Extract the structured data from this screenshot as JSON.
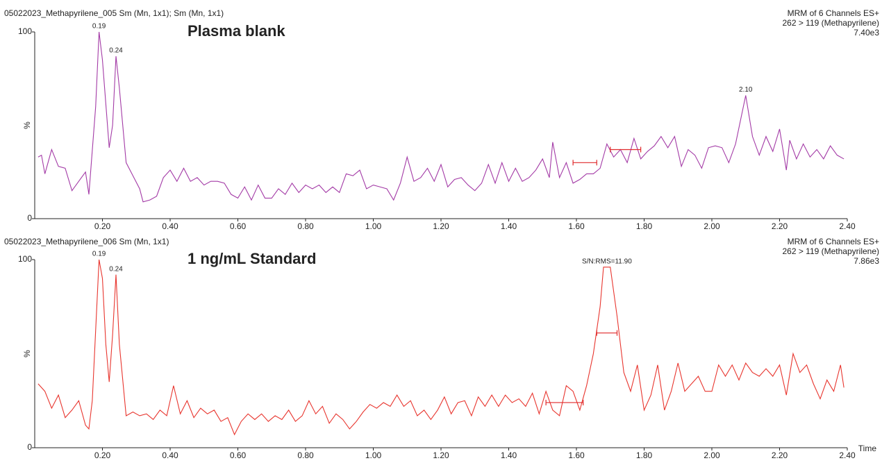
{
  "chart_data": [
    {
      "type": "line",
      "header_left": "05022023_Methapyrilene_005 Sm (Mn, 1x1); Sm (Mn, 1x1)",
      "header_right": [
        "MRM of 6 Channels ES+",
        "262 > 119 (Methapyrilene)",
        "7.40e3"
      ],
      "title": "Plasma blank",
      "y_label": "%",
      "color": "#a33aa6",
      "xlim": [
        0,
        2.4
      ],
      "ylim": [
        0,
        100
      ],
      "yticks": [
        0,
        100
      ],
      "xticks": [
        {
          "value": 0.2,
          "label": "0.20"
        },
        {
          "value": 0.4,
          "label": "0.40"
        },
        {
          "value": 0.6,
          "label": "0.60"
        },
        {
          "value": 0.8,
          "label": "0.80"
        },
        {
          "value": 1.0,
          "label": "1.00"
        },
        {
          "value": 1.2,
          "label": "1.20"
        },
        {
          "value": 1.4,
          "label": "1.40"
        },
        {
          "value": 1.6,
          "label": "1.60"
        },
        {
          "value": 1.8,
          "label": "1.80"
        },
        {
          "value": 2.0,
          "label": "2.00"
        },
        {
          "value": 2.2,
          "label": "2.20"
        },
        {
          "value": 2.4,
          "label": "2.40"
        }
      ],
      "x": [
        0.01,
        0.02,
        0.03,
        0.05,
        0.07,
        0.09,
        0.11,
        0.13,
        0.15,
        0.16,
        0.18,
        0.19,
        0.2,
        0.22,
        0.23,
        0.24,
        0.25,
        0.27,
        0.29,
        0.31,
        0.32,
        0.34,
        0.36,
        0.38,
        0.4,
        0.42,
        0.44,
        0.46,
        0.48,
        0.5,
        0.52,
        0.54,
        0.56,
        0.58,
        0.6,
        0.62,
        0.64,
        0.66,
        0.68,
        0.7,
        0.72,
        0.74,
        0.76,
        0.78,
        0.8,
        0.82,
        0.84,
        0.86,
        0.88,
        0.9,
        0.92,
        0.94,
        0.96,
        0.98,
        1.0,
        1.02,
        1.04,
        1.06,
        1.08,
        1.1,
        1.12,
        1.14,
        1.16,
        1.18,
        1.2,
        1.22,
        1.24,
        1.26,
        1.28,
        1.3,
        1.32,
        1.34,
        1.36,
        1.38,
        1.4,
        1.42,
        1.44,
        1.46,
        1.48,
        1.5,
        1.52,
        1.53,
        1.55,
        1.57,
        1.59,
        1.61,
        1.63,
        1.65,
        1.67,
        1.69,
        1.71,
        1.73,
        1.75,
        1.77,
        1.79,
        1.81,
        1.83,
        1.85,
        1.87,
        1.89,
        1.91,
        1.93,
        1.95,
        1.97,
        1.99,
        2.01,
        2.03,
        2.05,
        2.07,
        2.1,
        2.12,
        2.14,
        2.16,
        2.18,
        2.2,
        2.22,
        2.23,
        2.25,
        2.27,
        2.29,
        2.31,
        2.33,
        2.35,
        2.37,
        2.39
      ],
      "values": [
        33,
        34,
        24,
        37,
        28,
        27,
        15,
        20,
        25,
        13,
        60,
        100,
        85,
        38,
        50,
        87,
        70,
        30,
        23,
        16,
        9,
        10,
        12,
        22,
        26,
        20,
        27,
        20,
        22,
        18,
        20,
        20,
        19,
        13,
        11,
        17,
        10,
        18,
        11,
        11,
        16,
        13,
        19,
        14,
        18,
        16,
        18,
        14,
        17,
        14,
        24,
        23,
        26,
        16,
        18,
        17,
        16,
        10,
        19,
        33,
        20,
        22,
        27,
        20,
        29,
        17,
        21,
        22,
        18,
        15,
        19,
        29,
        19,
        30,
        20,
        27,
        20,
        22,
        26,
        32,
        22,
        41,
        22,
        30,
        19,
        21,
        24,
        24,
        27,
        40,
        33,
        37,
        30,
        43,
        32,
        36,
        39,
        44,
        38,
        44,
        28,
        37,
        34,
        27,
        38,
        39,
        38,
        30,
        40,
        66,
        44,
        34,
        44,
        36,
        48,
        26,
        42,
        32,
        40,
        33,
        37,
        32,
        39,
        34,
        32
      ],
      "annotations": [
        {
          "text": "0.19",
          "x": 0.19,
          "y": 100
        },
        {
          "text": "0.24",
          "x": 0.24,
          "y": 87
        },
        {
          "text": "2.10",
          "x": 2.1,
          "y": 66
        }
      ],
      "intervals": [
        {
          "x": [
            1.59,
            1.66
          ],
          "y": 30
        },
        {
          "x": [
            1.7,
            1.79
          ],
          "y": 37
        }
      ]
    },
    {
      "type": "line",
      "header_left": "05022023_Methapyrilene_006 Sm (Mn, 1x1)",
      "header_right": [
        "MRM of 6 Channels ES+",
        "262 > 119 (Methapyrilene)",
        "7.86e3"
      ],
      "title": "1 ng/mL Standard",
      "y_label": "%",
      "x_label": "Time",
      "color": "#e8352e",
      "xlim": [
        0,
        2.4
      ],
      "ylim": [
        0,
        100
      ],
      "yticks": [
        0,
        100
      ],
      "xticks": [
        {
          "value": 0.2,
          "label": "0.20"
        },
        {
          "value": 0.4,
          "label": "0.40"
        },
        {
          "value": 0.6,
          "label": "0.60"
        },
        {
          "value": 0.8,
          "label": "0.80"
        },
        {
          "value": 1.0,
          "label": "1.00"
        },
        {
          "value": 1.2,
          "label": "1.20"
        },
        {
          "value": 1.4,
          "label": "1.40"
        },
        {
          "value": 1.6,
          "label": "1.60"
        },
        {
          "value": 1.8,
          "label": "1.80"
        },
        {
          "value": 2.0,
          "label": "2.00"
        },
        {
          "value": 2.2,
          "label": "2.20"
        },
        {
          "value": 2.4,
          "label": "2.40"
        }
      ],
      "x": [
        0.01,
        0.03,
        0.05,
        0.07,
        0.09,
        0.11,
        0.13,
        0.15,
        0.16,
        0.17,
        0.19,
        0.2,
        0.21,
        0.22,
        0.23,
        0.24,
        0.25,
        0.27,
        0.29,
        0.31,
        0.33,
        0.35,
        0.37,
        0.39,
        0.41,
        0.43,
        0.45,
        0.47,
        0.49,
        0.51,
        0.53,
        0.55,
        0.57,
        0.59,
        0.61,
        0.63,
        0.65,
        0.67,
        0.69,
        0.71,
        0.73,
        0.75,
        0.77,
        0.79,
        0.81,
        0.83,
        0.85,
        0.87,
        0.89,
        0.91,
        0.93,
        0.95,
        0.97,
        0.99,
        1.01,
        1.03,
        1.05,
        1.07,
        1.09,
        1.11,
        1.13,
        1.15,
        1.17,
        1.19,
        1.21,
        1.23,
        1.25,
        1.27,
        1.29,
        1.31,
        1.33,
        1.35,
        1.37,
        1.39,
        1.41,
        1.43,
        1.45,
        1.47,
        1.49,
        1.51,
        1.53,
        1.55,
        1.57,
        1.59,
        1.61,
        1.63,
        1.65,
        1.67,
        1.68,
        1.7,
        1.72,
        1.74,
        1.76,
        1.78,
        1.8,
        1.82,
        1.84,
        1.86,
        1.88,
        1.9,
        1.92,
        1.94,
        1.96,
        1.98,
        2.0,
        2.02,
        2.04,
        2.06,
        2.08,
        2.1,
        2.12,
        2.14,
        2.16,
        2.18,
        2.2,
        2.22,
        2.24,
        2.26,
        2.28,
        2.3,
        2.32,
        2.34,
        2.36,
        2.38,
        2.39
      ],
      "values": [
        34,
        30,
        21,
        28,
        16,
        20,
        25,
        12,
        10,
        25,
        100,
        90,
        55,
        35,
        60,
        92,
        55,
        17,
        19,
        17,
        18,
        15,
        20,
        17,
        33,
        18,
        25,
        16,
        21,
        18,
        20,
        14,
        16,
        7,
        14,
        18,
        15,
        18,
        14,
        17,
        15,
        20,
        14,
        17,
        25,
        18,
        22,
        13,
        18,
        15,
        10,
        14,
        19,
        23,
        21,
        24,
        22,
        28,
        22,
        25,
        17,
        20,
        15,
        20,
        27,
        18,
        24,
        25,
        17,
        27,
        22,
        28,
        22,
        28,
        24,
        26,
        22,
        29,
        18,
        30,
        20,
        17,
        33,
        30,
        20,
        33,
        50,
        75,
        96,
        96,
        70,
        40,
        30,
        44,
        20,
        28,
        44,
        20,
        30,
        45,
        30,
        34,
        38,
        30,
        30,
        44,
        38,
        44,
        36,
        45,
        40,
        38,
        42,
        38,
        44,
        28,
        50,
        40,
        44,
        34,
        26,
        36,
        30,
        44,
        32
      ],
      "annotations": [
        {
          "text": "0.19",
          "x": 0.19,
          "y": 100
        },
        {
          "text": "0.24",
          "x": 0.24,
          "y": 92
        },
        {
          "text": "S/N:RMS=11.90",
          "x": 1.69,
          "y": 96
        }
      ],
      "intervals": [
        {
          "x": [
            1.51,
            1.62
          ],
          "y": 24
        },
        {
          "x": [
            1.66,
            1.72
          ],
          "y": 61
        }
      ]
    }
  ]
}
